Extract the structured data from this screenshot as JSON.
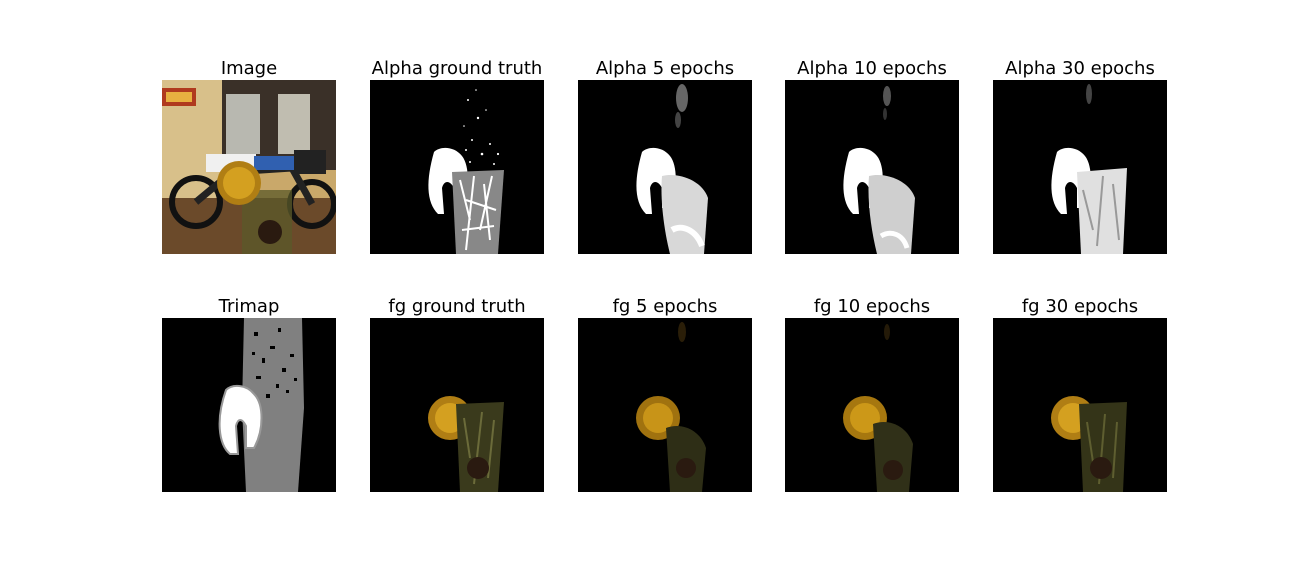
{
  "panels": [
    {
      "title": "Image",
      "kind": "photo"
    },
    {
      "title": "Alpha ground truth",
      "kind": "alpha-gt"
    },
    {
      "title": "Alpha 5 epochs",
      "kind": "alpha-pred"
    },
    {
      "title": "Alpha 10 epochs",
      "kind": "alpha-pred"
    },
    {
      "title": "Alpha 30 epochs",
      "kind": "alpha-pred"
    },
    {
      "title": "Trimap",
      "kind": "trimap"
    },
    {
      "title": "fg ground truth",
      "kind": "fg"
    },
    {
      "title": "fg 5 epochs",
      "kind": "fg"
    },
    {
      "title": "fg 10 epochs",
      "kind": "fg"
    },
    {
      "title": "fg 30 epochs",
      "kind": "fg"
    }
  ],
  "colors": {
    "background": "#000000",
    "alpha": "#ffffff",
    "trimap_unknown": "#808080",
    "lemon": "#b07e14",
    "glass": "#5a5a2a",
    "wall": "#c9a86a",
    "ground": "#6b4a2a"
  }
}
